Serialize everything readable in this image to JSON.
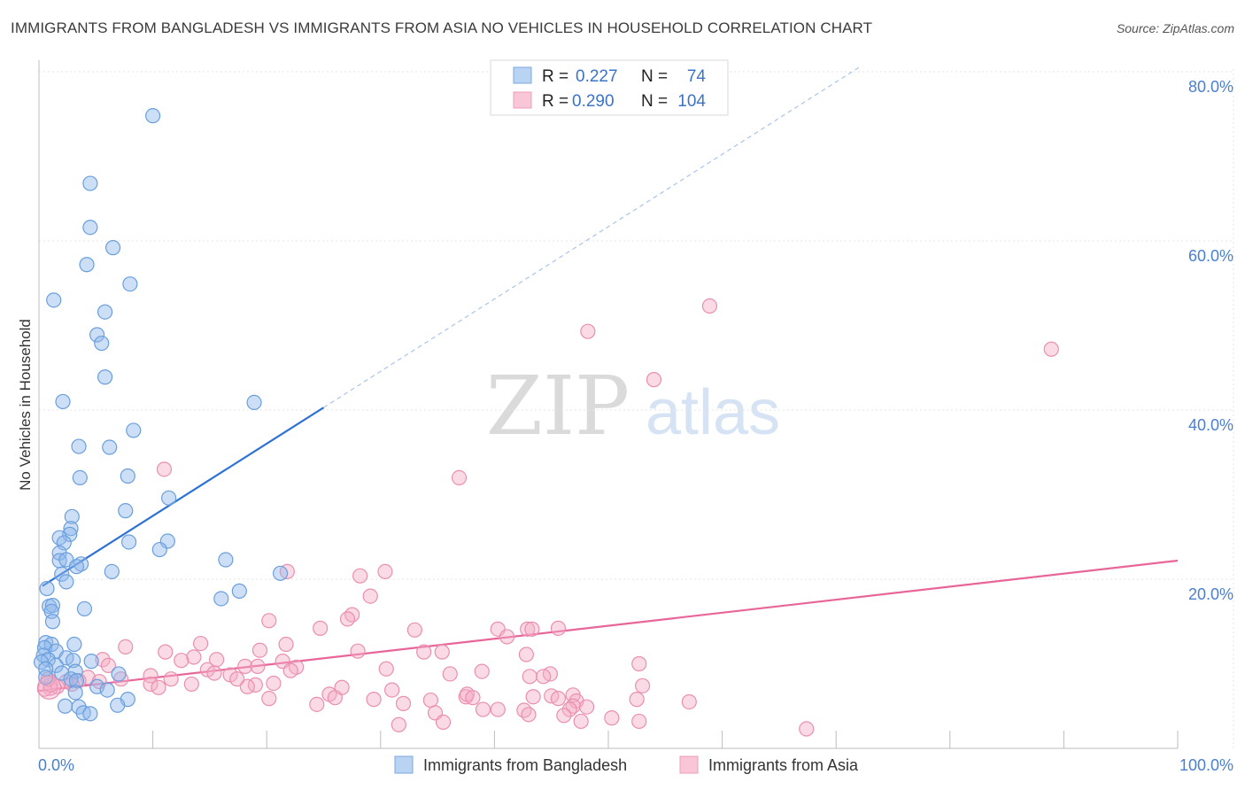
{
  "title": "IMMIGRANTS FROM BANGLADESH VS IMMIGRANTS FROM ASIA NO VEHICLES IN HOUSEHOLD CORRELATION CHART",
  "source": "Source: ZipAtlas.com",
  "watermark": {
    "zip": "ZIP",
    "atlas": "atlas"
  },
  "chart_data": {
    "type": "scatter",
    "title": "IMMIGRANTS FROM BANGLADESH VS IMMIGRANTS FROM ASIA NO VEHICLES IN HOUSEHOLD CORRELATION CHART",
    "xlabel": "",
    "ylabel": "No Vehicles in Household",
    "xlim": [
      0,
      100
    ],
    "ylim": [
      0,
      80
    ],
    "x_tick_labels": [
      "0.0%",
      "100.0%"
    ],
    "y_ticks": [
      20,
      40,
      60,
      80
    ],
    "y_tick_labels": [
      "20.0%",
      "40.0%",
      "60.0%",
      "80.0%"
    ],
    "grid": true,
    "legend": {
      "placement": "top-center",
      "rows": [
        {
          "r_label": "R =",
          "r_value": "0.227",
          "n_label": "N =",
          "n_value": "74"
        },
        {
          "r_label": "R =",
          "r_value": "0.290",
          "n_label": "N =",
          "n_value": "104"
        }
      ]
    },
    "series": [
      {
        "name": "Immigrants from Bangladesh",
        "color": "#8db8ea",
        "stroke": "#6a9fdd",
        "line_color": "#2e72d2",
        "trend": {
          "x0": 0.3,
          "y0": 19.2,
          "x1": 25,
          "y1": 40.3,
          "dash_x1": 72,
          "dash_y1": 80.5
        },
        "points": [
          [
            10.0,
            74.8
          ],
          [
            4.5,
            66.8
          ],
          [
            4.5,
            61.6
          ],
          [
            6.5,
            59.2
          ],
          [
            4.2,
            57.2
          ],
          [
            8.0,
            54.9
          ],
          [
            1.3,
            53.0
          ],
          [
            5.8,
            51.6
          ],
          [
            5.1,
            48.9
          ],
          [
            5.5,
            47.9
          ],
          [
            5.8,
            43.9
          ],
          [
            2.1,
            41.0
          ],
          [
            18.9,
            40.9
          ],
          [
            8.3,
            37.6
          ],
          [
            3.5,
            35.7
          ],
          [
            6.2,
            35.6
          ],
          [
            3.6,
            32.0
          ],
          [
            7.8,
            32.2
          ],
          [
            11.4,
            29.6
          ],
          [
            7.6,
            28.1
          ],
          [
            2.9,
            27.4
          ],
          [
            2.8,
            26.0
          ],
          [
            2.7,
            25.3
          ],
          [
            1.8,
            24.9
          ],
          [
            2.2,
            24.3
          ],
          [
            7.9,
            24.4
          ],
          [
            11.3,
            24.5
          ],
          [
            10.6,
            23.5
          ],
          [
            1.8,
            23.1
          ],
          [
            1.8,
            22.2
          ],
          [
            2.4,
            22.3
          ],
          [
            16.4,
            22.3
          ],
          [
            3.7,
            21.8
          ],
          [
            3.3,
            21.5
          ],
          [
            6.4,
            20.9
          ],
          [
            2.0,
            20.6
          ],
          [
            21.2,
            20.7
          ],
          [
            2.4,
            19.7
          ],
          [
            0.7,
            18.9
          ],
          [
            17.6,
            18.6
          ],
          [
            16.0,
            17.7
          ],
          [
            0.9,
            16.8
          ],
          [
            1.2,
            16.9
          ],
          [
            1.1,
            16.2
          ],
          [
            4.0,
            16.5
          ],
          [
            1.2,
            15.0
          ],
          [
            0.6,
            12.5
          ],
          [
            1.1,
            12.3
          ],
          [
            3.1,
            12.3
          ],
          [
            0.5,
            11.9
          ],
          [
            1.5,
            11.5
          ],
          [
            0.4,
            11.0
          ],
          [
            0.8,
            10.5
          ],
          [
            2.4,
            10.7
          ],
          [
            3.0,
            10.4
          ],
          [
            4.6,
            10.3
          ],
          [
            0.2,
            10.2
          ],
          [
            1.5,
            9.8
          ],
          [
            0.6,
            9.4
          ],
          [
            2.0,
            8.9
          ],
          [
            3.2,
            9.1
          ],
          [
            7.0,
            8.8
          ],
          [
            0.6,
            8.4
          ],
          [
            2.8,
            8.2
          ],
          [
            3.3,
            8.0
          ],
          [
            5.1,
            7.3
          ],
          [
            6.0,
            6.9
          ],
          [
            3.2,
            6.6
          ],
          [
            7.8,
            5.8
          ],
          [
            6.9,
            5.1
          ],
          [
            2.3,
            5.0
          ],
          [
            3.5,
            4.9
          ],
          [
            3.9,
            4.2
          ],
          [
            4.5,
            4.1
          ]
        ]
      },
      {
        "name": "Immigrants from Asia",
        "color": "#f4adc6",
        "stroke": "#ea8fb0",
        "line_color": "#e8659a",
        "trend": {
          "x0": 0,
          "y0": 6.8,
          "x1": 100,
          "y1": 22.2
        },
        "points": [
          [
            58.9,
            52.3
          ],
          [
            88.9,
            47.2
          ],
          [
            48.2,
            49.3
          ],
          [
            54.0,
            43.6
          ],
          [
            36.9,
            32.0
          ],
          [
            11.0,
            33.0
          ],
          [
            30.4,
            20.9
          ],
          [
            28.2,
            20.4
          ],
          [
            21.8,
            20.9
          ],
          [
            29.1,
            18.0
          ],
          [
            27.5,
            15.8
          ],
          [
            27.1,
            15.3
          ],
          [
            20.2,
            15.1
          ],
          [
            24.7,
            14.2
          ],
          [
            33.0,
            14.0
          ],
          [
            40.3,
            14.1
          ],
          [
            42.9,
            14.1
          ],
          [
            43.3,
            14.1
          ],
          [
            45.6,
            14.2
          ],
          [
            41.1,
            13.2
          ],
          [
            14.2,
            12.4
          ],
          [
            21.7,
            12.3
          ],
          [
            7.6,
            12.0
          ],
          [
            19.4,
            11.6
          ],
          [
            28.0,
            11.5
          ],
          [
            11.1,
            11.4
          ],
          [
            33.8,
            11.4
          ],
          [
            35.4,
            11.4
          ],
          [
            42.8,
            11.1
          ],
          [
            13.6,
            10.8
          ],
          [
            15.6,
            10.5
          ],
          [
            21.4,
            10.3
          ],
          [
            5.6,
            10.5
          ],
          [
            12.5,
            10.4
          ],
          [
            6.1,
            9.8
          ],
          [
            18.1,
            9.7
          ],
          [
            19.2,
            9.7
          ],
          [
            22.6,
            9.6
          ],
          [
            30.5,
            9.4
          ],
          [
            14.8,
            9.3
          ],
          [
            22.1,
            9.2
          ],
          [
            38.9,
            9.1
          ],
          [
            36.1,
            8.8
          ],
          [
            44.9,
            8.8
          ],
          [
            43.1,
            8.5
          ],
          [
            44.3,
            8.5
          ],
          [
            52.7,
            10.0
          ],
          [
            15.4,
            8.9
          ],
          [
            16.8,
            8.7
          ],
          [
            9.8,
            8.6
          ],
          [
            11.6,
            8.2
          ],
          [
            17.4,
            8.2
          ],
          [
            4.3,
            8.4
          ],
          [
            7.2,
            8.2
          ],
          [
            2.4,
            7.9
          ],
          [
            3.5,
            8.0
          ],
          [
            5.3,
            7.9
          ],
          [
            20.6,
            7.7
          ],
          [
            13.4,
            7.6
          ],
          [
            9.8,
            7.6
          ],
          [
            19.0,
            7.5
          ],
          [
            2.9,
            7.6
          ],
          [
            18.3,
            7.3
          ],
          [
            1.6,
            7.3
          ],
          [
            10.5,
            7.2
          ],
          [
            26.6,
            7.2
          ],
          [
            1.0,
            7.1
          ],
          [
            31.0,
            6.9
          ],
          [
            25.5,
            6.4
          ],
          [
            26.0,
            6.0
          ],
          [
            29.4,
            5.8
          ],
          [
            34.4,
            5.7
          ],
          [
            37.5,
            6.1
          ],
          [
            37.6,
            6.4
          ],
          [
            38.1,
            6.0
          ],
          [
            43.4,
            6.1
          ],
          [
            45.0,
            6.2
          ],
          [
            46.9,
            6.3
          ],
          [
            45.6,
            5.9
          ],
          [
            47.2,
            5.6
          ],
          [
            53.0,
            7.4
          ],
          [
            52.5,
            5.8
          ],
          [
            57.1,
            5.5
          ],
          [
            46.9,
            5.0
          ],
          [
            48.1,
            4.9
          ],
          [
            46.6,
            4.6
          ],
          [
            20.2,
            5.9
          ],
          [
            32.0,
            5.3
          ],
          [
            24.4,
            5.2
          ],
          [
            39.0,
            4.6
          ],
          [
            42.6,
            4.5
          ],
          [
            43.0,
            4.0
          ],
          [
            47.6,
            3.2
          ],
          [
            50.3,
            3.6
          ],
          [
            52.7,
            3.2
          ],
          [
            34.8,
            4.2
          ],
          [
            46.1,
            3.9
          ],
          [
            40.3,
            4.6
          ],
          [
            35.5,
            3.1
          ],
          [
            31.6,
            2.8
          ],
          [
            67.4,
            2.3
          ],
          [
            0.5,
            7.0
          ],
          [
            1.0,
            7.5
          ],
          [
            0.8,
            8.2
          ]
        ]
      }
    ]
  }
}
